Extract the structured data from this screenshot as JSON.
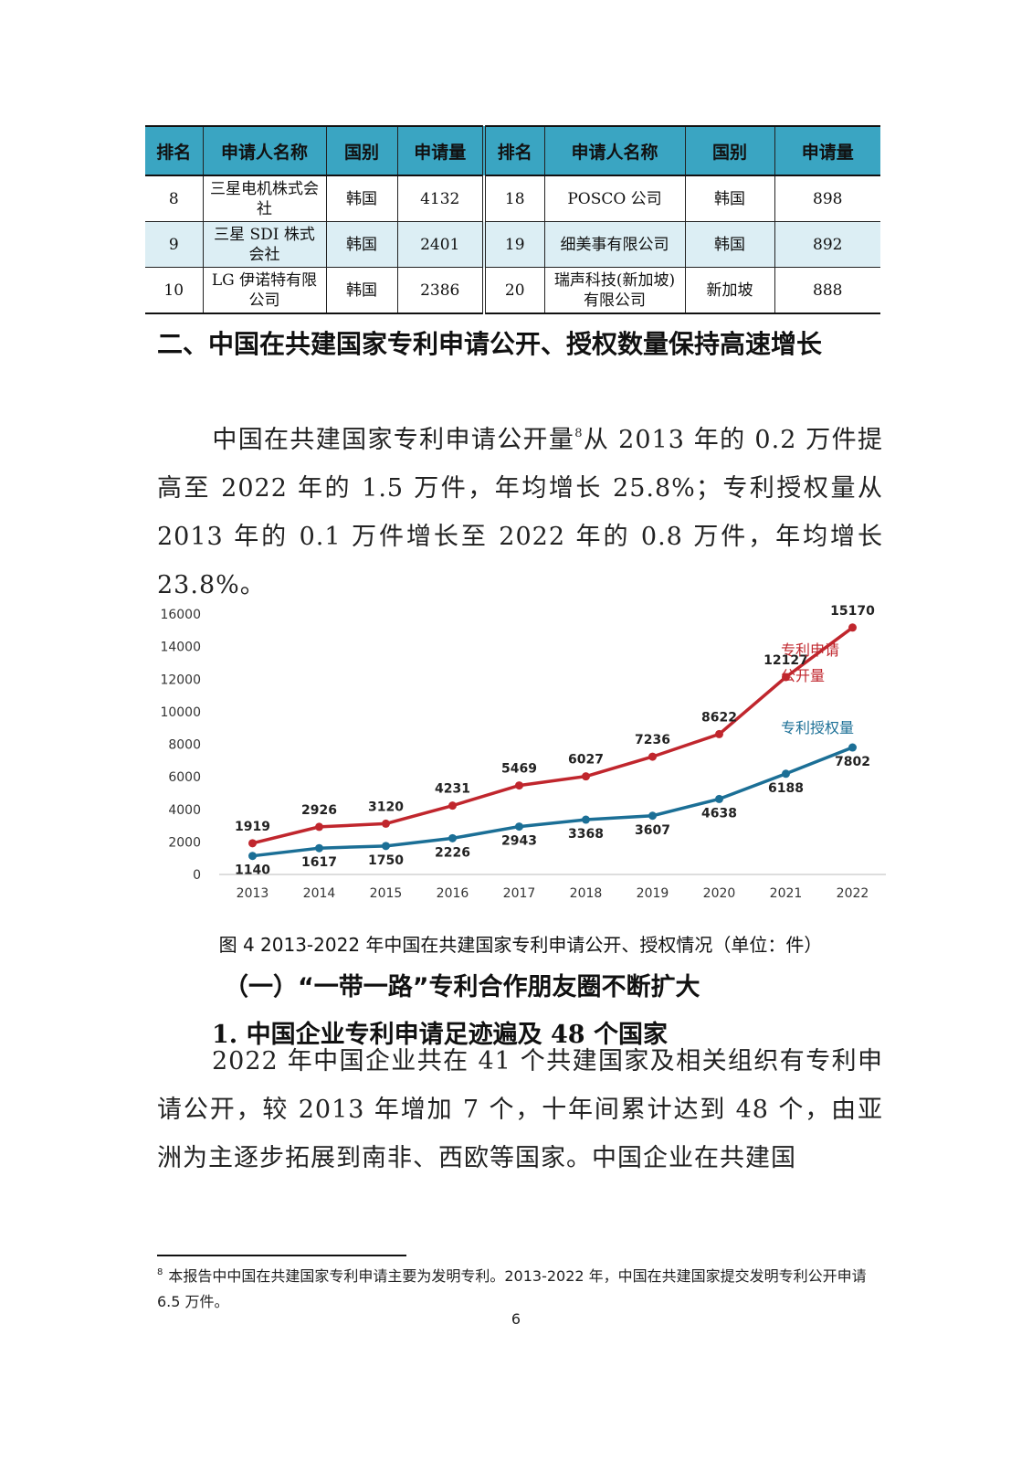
{
  "table": {
    "headers": [
      "排名",
      "申请人名称",
      "国别",
      "申请量",
      "排名",
      "申请人名称",
      "国别",
      "申请量"
    ],
    "rows": [
      [
        "8",
        "三星电机株式会社",
        "韩国",
        "4132",
        "18",
        "POSCO 公司",
        "韩国",
        "898"
      ],
      [
        "9",
        "三星 SDI 株式会社",
        "韩国",
        "2401",
        "19",
        "细美事有限公司",
        "韩国",
        "892"
      ],
      [
        "10",
        "LG 伊诺特有限公司",
        "韩国",
        "2386",
        "20",
        "瑞声科技(新加坡)有限公司",
        "新加坡",
        "888"
      ]
    ]
  },
  "section_heading": "二、中国在共建国家专利申请公开、授权数量保持高速增长",
  "paragraph1": {
    "before_note": "中国在共建国家专利申请公开量",
    "note_mark": "8",
    "after_note": "从 2013 年的 0.2 万件提高至 2022 年的 1.5 万件，年均增长 25.8%；专利授权量从 2013 年的 0.1 万件增长至 2022 年的 0.8 万件，年均增长 23.8%。"
  },
  "chart_data": {
    "type": "line",
    "x": [
      "2013",
      "2014",
      "2015",
      "2016",
      "2017",
      "2018",
      "2019",
      "2020",
      "2021",
      "2022"
    ],
    "series": [
      {
        "name": "专利申请公开量",
        "color": "#c0262d",
        "values": [
          1919,
          2926,
          3120,
          4231,
          5469,
          6027,
          7236,
          8622,
          12127,
          15170
        ]
      },
      {
        "name": "专利授权量",
        "color": "#1b6f96",
        "values": [
          1140,
          1617,
          1750,
          2226,
          2943,
          3368,
          3607,
          4638,
          6188,
          7802
        ]
      }
    ],
    "yticks": [
      "0",
      "2000",
      "4000",
      "6000",
      "8000",
      "10000",
      "12000",
      "14000",
      "16000"
    ],
    "ylim": [
      0,
      16000
    ],
    "grid": false,
    "legend": "inline labels at right end of lines",
    "caption": "图 4 2013-2022 年中国在共建国家专利申请公开、授权情况（单位：件）"
  },
  "subheading1": "（一）“一带一路”专利合作朋友圈不断扩大",
  "subheading2": "1. 中国企业专利申请足迹遍及 48 个国家",
  "paragraph2": "2022 年中国企业共在 41 个共建国家及相关组织有专利申请公开，较 2013 年增加 7 个，十年间累计达到 48 个，由亚洲为主逐步拓展到南非、西欧等国家。中国企业在共建国",
  "footnote": {
    "mark": "8",
    "text": "本报告中中国在共建国家专利申请主要为发明专利。2013-2022 年，中国在共建国家提交发明专利公开申请 6.5 万件。"
  },
  "page_number": "6"
}
